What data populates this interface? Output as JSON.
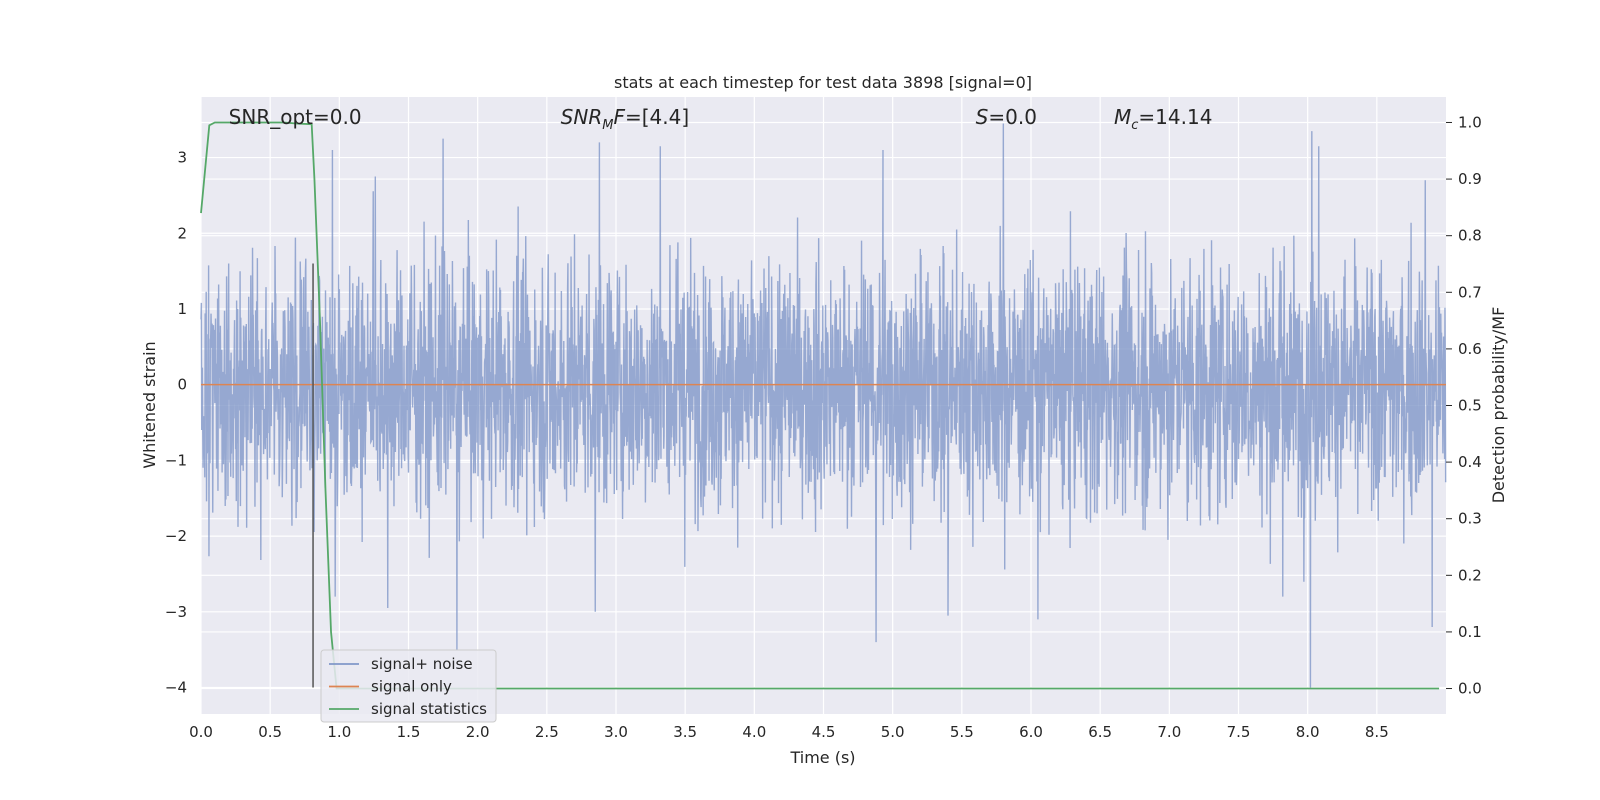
{
  "chart_data": {
    "type": "line",
    "title": "stats at each timestep for test data 3898 [signal=0]",
    "xlabel": "Time (s)",
    "ylabel": "Whitened strain",
    "y2label": "Detection probability/MF",
    "xlim": [
      0.0,
      9.0
    ],
    "ylim": [
      -4.35,
      3.8
    ],
    "y2lim": [
      -0.045,
      1.045
    ],
    "xticks": [
      0.0,
      0.5,
      1.0,
      1.5,
      2.0,
      2.5,
      3.0,
      3.5,
      4.0,
      4.5,
      5.0,
      5.5,
      6.0,
      6.5,
      7.0,
      7.5,
      8.0,
      8.5
    ],
    "xtick_labels": [
      "0.0",
      "0.5",
      "1.0",
      "1.5",
      "2.0",
      "2.5",
      "3.0",
      "3.5",
      "4.0",
      "4.5",
      "5.0",
      "5.5",
      "6.0",
      "6.5",
      "7.0",
      "7.5",
      "8.0",
      "8.5"
    ],
    "yticks": [
      -4,
      -3,
      -2,
      -1,
      0,
      1,
      2,
      3
    ],
    "ytick_labels": [
      "−4",
      "−3",
      "−2",
      "−1",
      "0",
      "1",
      "2",
      "3"
    ],
    "y2ticks": [
      0.0,
      0.1,
      0.2,
      0.3,
      0.4,
      0.5,
      0.6,
      0.7,
      0.8,
      0.9,
      1.0
    ],
    "y2tick_labels": [
      "0.0",
      "0.1",
      "0.2",
      "0.3",
      "0.4",
      "0.5",
      "0.6",
      "0.7",
      "0.8",
      "0.9",
      "1.0"
    ],
    "grid": true,
    "legend_position": "bottom-left",
    "series": [
      {
        "name": "signal+ noise",
        "color": "#8197c8",
        "axis": "left",
        "sample_rate_hz": 400,
        "envelope_typical": [
          -1.6,
          1.6
        ],
        "spikes": [
          {
            "x": 0.95,
            "y": 3.1
          },
          {
            "x": 1.26,
            "y": 2.75
          },
          {
            "x": 1.75,
            "y": 3.25
          },
          {
            "x": 2.88,
            "y": 3.2
          },
          {
            "x": 3.32,
            "y": 3.15
          },
          {
            "x": 4.93,
            "y": 3.1
          },
          {
            "x": 5.8,
            "y": 3.45
          },
          {
            "x": 8.03,
            "y": 3.35
          },
          {
            "x": 8.08,
            "y": 3.15
          },
          {
            "x": 8.85,
            "y": 2.7
          },
          {
            "x": 1.85,
            "y": -3.5
          },
          {
            "x": 2.85,
            "y": -3.0
          },
          {
            "x": 4.88,
            "y": -3.4
          },
          {
            "x": 5.4,
            "y": -3.05
          },
          {
            "x": 6.05,
            "y": -3.1
          },
          {
            "x": 7.82,
            "y": -2.8
          },
          {
            "x": 8.02,
            "y": -4.0
          },
          {
            "x": 8.9,
            "y": -3.2
          },
          {
            "x": 0.97,
            "y": -2.8
          },
          {
            "x": 1.35,
            "y": -2.95
          }
        ]
      },
      {
        "name": "signal only",
        "color": "#dd8452",
        "axis": "left",
        "x": [
          0.0,
          9.0
        ],
        "y": [
          0.0,
          0.0
        ]
      },
      {
        "name": "signal statistics",
        "color": "#55a868",
        "axis": "right",
        "x": [
          0.0,
          0.06,
          0.1,
          0.2,
          0.3,
          0.4,
          0.5,
          0.6,
          0.7,
          0.8,
          0.82,
          0.86,
          0.9,
          0.94,
          0.98,
          1.0,
          1.5,
          2.0,
          3.0,
          4.0,
          5.0,
          6.0,
          7.0,
          8.0,
          8.95
        ],
        "y": [
          0.84,
          0.995,
          1.0,
          1.0,
          1.0,
          1.0,
          1.0,
          1.0,
          0.998,
          0.997,
          0.9,
          0.65,
          0.35,
          0.1,
          0.0,
          0.0,
          0.0,
          0.0,
          0.0,
          0.0,
          0.0,
          0.0,
          0.0,
          0.0,
          0.0
        ]
      }
    ],
    "vertical_line": {
      "x": 0.81,
      "y_from": -4.0,
      "y_to": 1.6,
      "color": "#555555"
    },
    "annotations": [
      {
        "text": "SNR_opt=0.0",
        "x": 0.2
      },
      {
        "text": "=[4.4]",
        "x": 2.6,
        "prefix": "SNR",
        "subscript": "M",
        "suffix": "F"
      },
      {
        "text": "=0.0",
        "x": 5.6,
        "prefix": "S"
      },
      {
        "text": "=14.14",
        "x": 6.6,
        "prefix": "M",
        "subscript": "c"
      }
    ]
  }
}
